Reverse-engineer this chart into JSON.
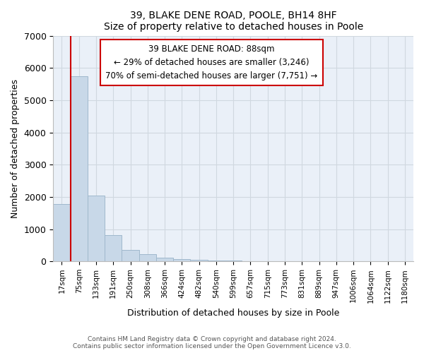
{
  "title": "39, BLAKE DENE ROAD, POOLE, BH14 8HF",
  "subtitle": "Size of property relative to detached houses in Poole",
  "xlabel": "Distribution of detached houses by size in Poole",
  "ylabel": "Number of detached properties",
  "bar_labels": [
    "17sqm",
    "75sqm",
    "133sqm",
    "191sqm",
    "250sqm",
    "308sqm",
    "366sqm",
    "424sqm",
    "482sqm",
    "540sqm",
    "599sqm",
    "657sqm",
    "715sqm",
    "773sqm",
    "831sqm",
    "889sqm",
    "947sqm",
    "1006sqm",
    "1064sqm",
    "1122sqm",
    "1180sqm"
  ],
  "bar_values": [
    1780,
    5750,
    2050,
    820,
    360,
    230,
    120,
    70,
    50,
    30,
    20,
    0,
    0,
    0,
    0,
    0,
    0,
    0,
    0,
    0,
    0
  ],
  "bar_color": "#c8d8e8",
  "bar_edge_color": "#a0b8cc",
  "ylim": [
    0,
    7000
  ],
  "yticks": [
    0,
    1000,
    2000,
    3000,
    4000,
    5000,
    6000,
    7000
  ],
  "property_line_color": "#cc0000",
  "property_line_index": 1,
  "annotation_title": "39 BLAKE DENE ROAD: 88sqm",
  "annotation_line1": "← 29% of detached houses are smaller (3,246)",
  "annotation_line2": "70% of semi-detached houses are larger (7,751) →",
  "box_edge_color": "#cc0000",
  "footer_line1": "Contains HM Land Registry data © Crown copyright and database right 2024.",
  "footer_line2": "Contains public sector information licensed under the Open Government Licence v3.0.",
  "grid_color": "#d0d8e0",
  "background_color": "#eaf0f8"
}
